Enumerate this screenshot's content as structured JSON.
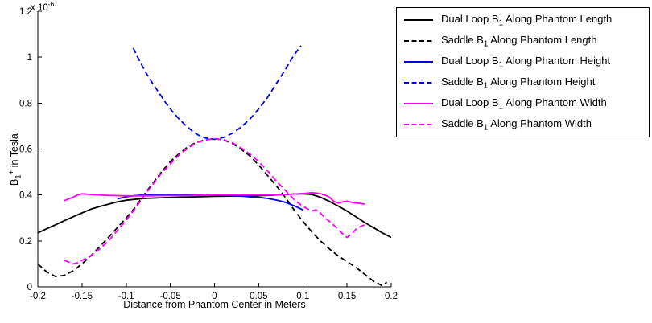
{
  "figure": {
    "background": "#ffffff",
    "axis_color": "#000000"
  },
  "axes": {
    "x": {
      "label": "Distance from Phantom Center in Meters",
      "tick_values": [
        -0.2,
        -0.15,
        -0.1,
        -0.05,
        0,
        0.05,
        0.1,
        0.15,
        0.2
      ],
      "tick_labels": [
        "-0.2",
        "-0.15",
        "-0.1",
        "-0.05",
        "0",
        "0.05",
        "0.1",
        "0.15",
        "0.2"
      ]
    },
    "y": {
      "label_pre": "B",
      "label_sub": "1",
      "label_sup": "+",
      "label_post": " in Tesla",
      "offset_prefix": "x 10",
      "offset_exponent": "-6",
      "tick_values": [
        0,
        0.2,
        0.4,
        0.6,
        0.8,
        1,
        1.2
      ],
      "tick_labels": [
        "0",
        "0.2",
        "0.4",
        "0.6",
        "0.8",
        "1",
        "1.2"
      ]
    }
  },
  "chart_data": {
    "type": "line",
    "title": "",
    "xlabel": "Distance from Phantom Center in Meters",
    "ylabel": "B1+ in Tesla",
    "y_scale": "1e-6",
    "xlim": [
      -0.2,
      0.2
    ],
    "ylim": [
      0,
      1.2
    ],
    "grid": false,
    "legend_position": "outside-right",
    "series": [
      {
        "id": "dual-loop-length",
        "name": "Dual Loop B1 Along Phantom Length",
        "label_pre": "Dual Loop B",
        "label_sub": "1",
        "label_post": " Along Phantom Length",
        "color": "#000000",
        "style": "solid",
        "x": [
          -0.2,
          -0.19,
          -0.18,
          -0.17,
          -0.16,
          -0.15,
          -0.14,
          -0.13,
          -0.12,
          -0.11,
          -0.1,
          -0.08,
          -0.06,
          -0.04,
          -0.02,
          0,
          0.02,
          0.04,
          0.06,
          0.08,
          0.09,
          0.1,
          0.11,
          0.12,
          0.13,
          0.14,
          0.15,
          0.16,
          0.17,
          0.18,
          0.19,
          0.2
        ],
        "y": [
          0.235,
          0.253,
          0.27,
          0.288,
          0.305,
          0.322,
          0.338,
          0.35,
          0.36,
          0.37,
          0.377,
          0.385,
          0.388,
          0.39,
          0.392,
          0.394,
          0.395,
          0.396,
          0.398,
          0.402,
          0.404,
          0.405,
          0.402,
          0.39,
          0.372,
          0.352,
          0.33,
          0.305,
          0.28,
          0.258,
          0.235,
          0.215
        ]
      },
      {
        "id": "saddle-length",
        "name": "Saddle B1 Along Phantom Length",
        "label_pre": "Saddle B",
        "label_sub": "1",
        "label_post": " Along Phantom Length",
        "color": "#000000",
        "style": "dashed",
        "x": [
          -0.2,
          -0.19,
          -0.18,
          -0.17,
          -0.16,
          -0.15,
          -0.14,
          -0.13,
          -0.12,
          -0.11,
          -0.1,
          -0.09,
          -0.08,
          -0.07,
          -0.06,
          -0.05,
          -0.04,
          -0.03,
          -0.02,
          -0.01,
          0,
          0.01,
          0.02,
          0.03,
          0.04,
          0.05,
          0.06,
          0.07,
          0.08,
          0.09,
          0.1,
          0.11,
          0.12,
          0.13,
          0.14,
          0.15,
          0.16,
          0.17,
          0.18,
          0.19,
          0.195
        ],
        "y": [
          0.1,
          0.065,
          0.045,
          0.05,
          0.07,
          0.1,
          0.135,
          0.175,
          0.215,
          0.258,
          0.3,
          0.345,
          0.4,
          0.45,
          0.5,
          0.545,
          0.58,
          0.61,
          0.63,
          0.64,
          0.645,
          0.64,
          0.625,
          0.6,
          0.57,
          0.53,
          0.485,
          0.44,
          0.39,
          0.335,
          0.285,
          0.24,
          0.2,
          0.165,
          0.135,
          0.11,
          0.085,
          0.055,
          0.025,
          0.005,
          0.02
        ]
      },
      {
        "id": "dual-loop-height",
        "name": "Dual Loop B1 Along Phantom Height",
        "label_pre": "Dual Loop B",
        "label_sub": "1",
        "label_post": " Along Phantom Height",
        "color": "#0000EE",
        "style": "solid",
        "x": [
          -0.11,
          -0.1,
          -0.09,
          -0.08,
          -0.07,
          -0.06,
          -0.05,
          -0.04,
          -0.03,
          -0.02,
          -0.01,
          0,
          0.01,
          0.02,
          0.03,
          0.04,
          0.05,
          0.06,
          0.07,
          0.08,
          0.09,
          0.1
        ],
        "y": [
          0.383,
          0.392,
          0.397,
          0.4,
          0.401,
          0.401,
          0.401,
          0.401,
          0.4,
          0.4,
          0.4,
          0.4,
          0.399,
          0.397,
          0.395,
          0.392,
          0.39,
          0.385,
          0.378,
          0.368,
          0.353,
          0.335
        ]
      },
      {
        "id": "saddle-height",
        "name": "Saddle B1 Along Phantom Height",
        "label_pre": "Saddle B",
        "label_sub": "1",
        "label_post": " Along Phantom Height",
        "color": "#0000EE",
        "style": "dashed",
        "x": [
          -0.092,
          -0.085,
          -0.078,
          -0.07,
          -0.062,
          -0.055,
          -0.048,
          -0.04,
          -0.032,
          -0.025,
          -0.018,
          -0.01,
          0,
          0.01,
          0.02,
          0.03,
          0.04,
          0.05,
          0.06,
          0.07,
          0.08,
          0.09,
          0.098
        ],
        "y": [
          1.04,
          0.985,
          0.935,
          0.885,
          0.84,
          0.8,
          0.765,
          0.73,
          0.7,
          0.678,
          0.66,
          0.648,
          0.642,
          0.65,
          0.668,
          0.695,
          0.73,
          0.775,
          0.825,
          0.885,
          0.945,
          1.01,
          1.05
        ]
      },
      {
        "id": "dual-loop-width",
        "name": "Dual Loop B1 Along Phantom Width",
        "label_pre": "Dual Loop B",
        "label_sub": "1",
        "label_post": " Along Phantom Width",
        "color": "#FF00FF",
        "style": "solid",
        "x": [
          -0.17,
          -0.165,
          -0.16,
          -0.155,
          -0.15,
          -0.14,
          -0.13,
          -0.12,
          -0.11,
          -0.1,
          -0.08,
          -0.06,
          -0.04,
          -0.02,
          0,
          0.02,
          0.04,
          0.06,
          0.08,
          0.09,
          0.1,
          0.11,
          0.115,
          0.12,
          0.125,
          0.13,
          0.135,
          0.14,
          0.145,
          0.15,
          0.155,
          0.16,
          0.165,
          0.17
        ],
        "y": [
          0.375,
          0.383,
          0.39,
          0.4,
          0.405,
          0.402,
          0.4,
          0.398,
          0.397,
          0.396,
          0.396,
          0.397,
          0.397,
          0.398,
          0.4,
          0.4,
          0.4,
          0.4,
          0.402,
          0.404,
          0.406,
          0.41,
          0.408,
          0.405,
          0.4,
          0.39,
          0.372,
          0.365,
          0.37,
          0.373,
          0.368,
          0.365,
          0.363,
          0.36
        ]
      },
      {
        "id": "saddle-width",
        "name": "Saddle B1 Along Phantom Width",
        "label_pre": "Saddle B",
        "label_sub": "1",
        "label_post": " Along Phantom Width",
        "color": "#FF00FF",
        "style": "dashed",
        "x": [
          -0.17,
          -0.165,
          -0.16,
          -0.155,
          -0.15,
          -0.14,
          -0.13,
          -0.12,
          -0.11,
          -0.1,
          -0.09,
          -0.08,
          -0.07,
          -0.06,
          -0.05,
          -0.04,
          -0.03,
          -0.02,
          -0.01,
          0,
          0.01,
          0.02,
          0.03,
          0.04,
          0.05,
          0.06,
          0.07,
          0.08,
          0.09,
          0.1,
          0.105,
          0.11,
          0.115,
          0.12,
          0.125,
          0.13,
          0.135,
          0.14,
          0.145,
          0.15,
          0.155,
          0.16,
          0.165,
          0.17
        ],
        "y": [
          0.115,
          0.108,
          0.1,
          0.105,
          0.115,
          0.135,
          0.165,
          0.2,
          0.245,
          0.29,
          0.34,
          0.395,
          0.445,
          0.495,
          0.535,
          0.575,
          0.605,
          0.628,
          0.64,
          0.645,
          0.64,
          0.628,
          0.605,
          0.578,
          0.545,
          0.505,
          0.46,
          0.42,
          0.38,
          0.35,
          0.34,
          0.33,
          0.335,
          0.32,
          0.3,
          0.285,
          0.268,
          0.25,
          0.232,
          0.215,
          0.23,
          0.25,
          0.262,
          0.27
        ]
      }
    ]
  }
}
